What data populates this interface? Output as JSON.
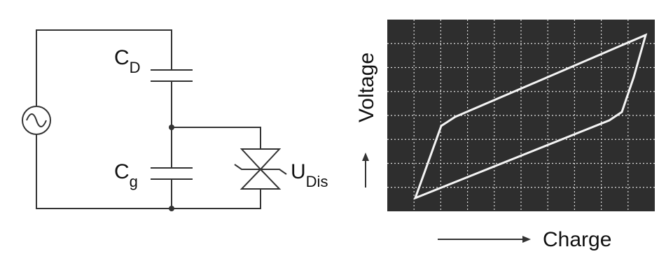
{
  "circuit": {
    "labels": [
      {
        "main": "C",
        "sub": "D"
      },
      {
        "main": "C",
        "sub": "g"
      },
      {
        "main": "U",
        "sub": "Dis"
      }
    ]
  },
  "scope": {
    "y_label": "Voltage",
    "x_label": "Charge"
  }
}
